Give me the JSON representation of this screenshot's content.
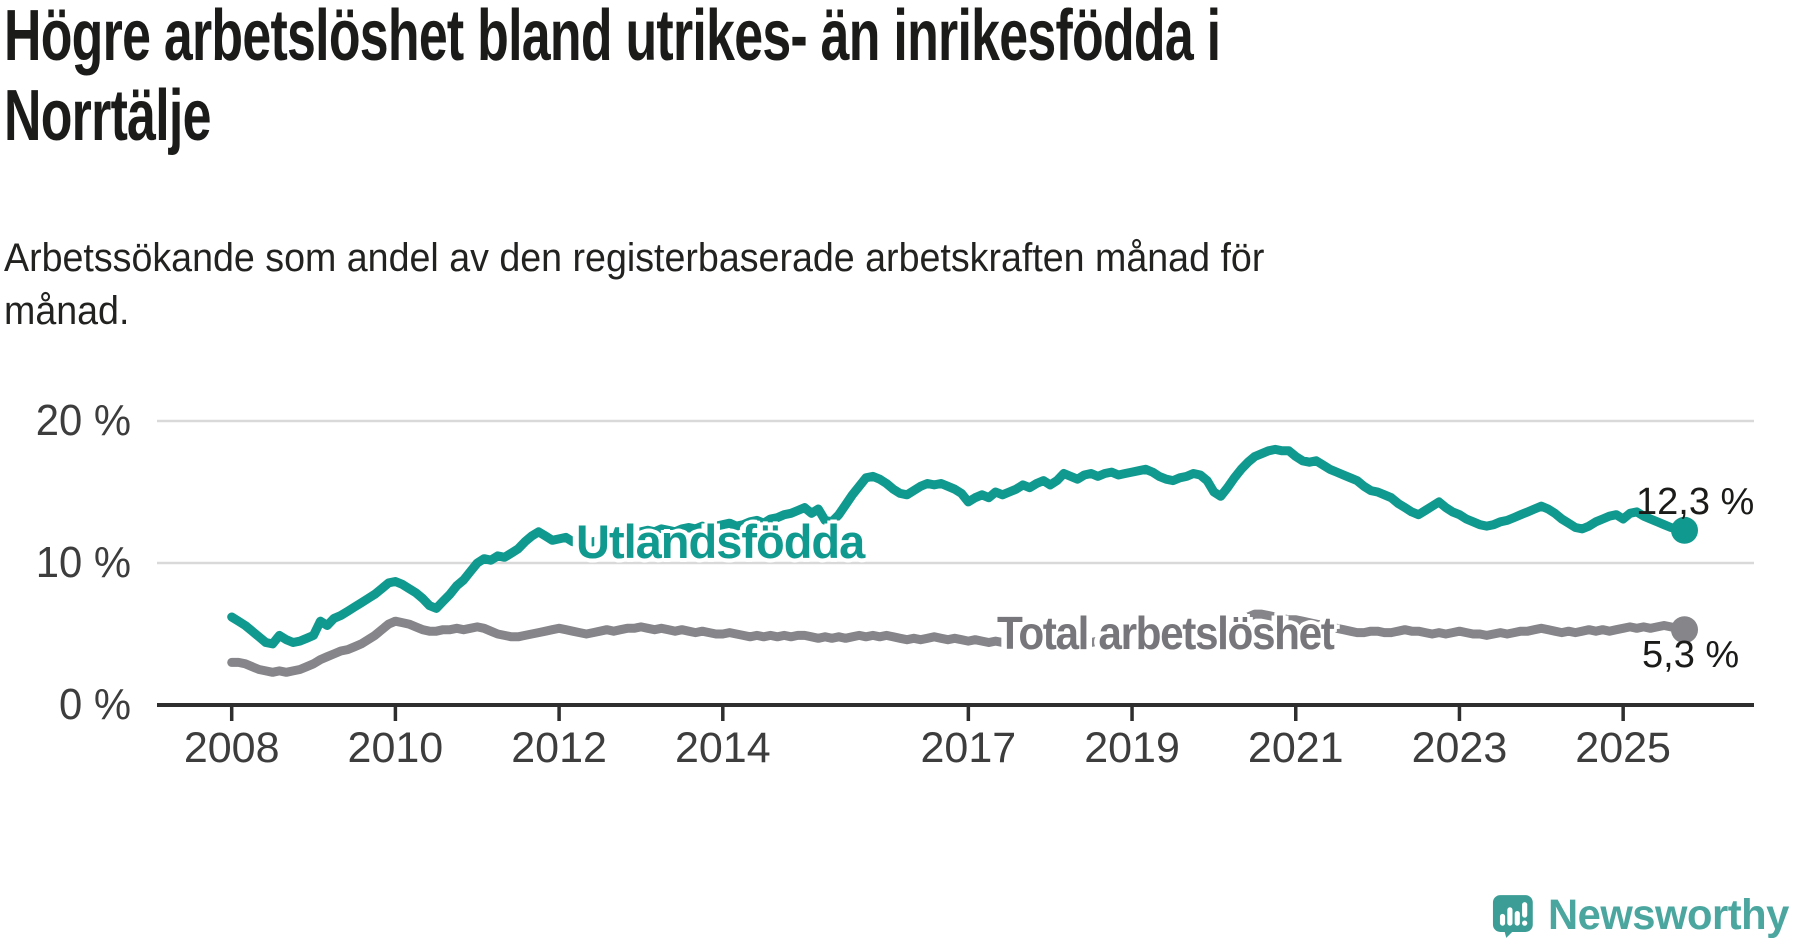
{
  "header": {
    "title_lines": [
      "Högre arbetslöshet bland utrikes- än inrikesfödda i",
      "Norrtälje"
    ],
    "subtitle_lines": [
      "Arbetssökande som andel av den registerbaserade arbetskraften månad för",
      "månad."
    ]
  },
  "chart_data": {
    "type": "line",
    "title": "Högre arbetslöshet bland utrikes- än inrikesfödda i Norrtälje",
    "subtitle": "Arbetssökande som andel av den registerbaserade arbetskraften månad för månad.",
    "x_start": "2008-01",
    "x_end": "2025-10",
    "x_frequency": "monthly",
    "ylim": [
      0,
      21.5
    ],
    "grid": true,
    "legend_position": "inline-labels",
    "y_axis": {
      "ticks": [
        {
          "label": "0 %",
          "value": 0
        },
        {
          "label": "10 %",
          "value": 10
        },
        {
          "label": "20 %",
          "value": 20
        }
      ]
    },
    "x_axis": {
      "ticks": [
        {
          "label": "2008",
          "year": 2008
        },
        {
          "label": "2010",
          "year": 2010
        },
        {
          "label": "2012",
          "year": 2012
        },
        {
          "label": "2014",
          "year": 2014
        },
        {
          "label": "2017",
          "year": 2017
        },
        {
          "label": "2019",
          "year": 2019
        },
        {
          "label": "2021",
          "year": 2021
        },
        {
          "label": "2023",
          "year": 2023
        },
        {
          "label": "2025",
          "year": 2025
        }
      ]
    },
    "series": [
      {
        "name": "Utlandsfödda",
        "color": "#10998E",
        "end_label": "12,3 %",
        "end_value": 12.3,
        "values": [
          6.2,
          5.9,
          5.6,
          5.2,
          4.8,
          4.4,
          4.3,
          4.9,
          4.6,
          4.4,
          4.5,
          4.7,
          4.9,
          5.9,
          5.6,
          6.1,
          6.3,
          6.6,
          6.9,
          7.2,
          7.5,
          7.8,
          8.2,
          8.6,
          8.7,
          8.5,
          8.2,
          7.9,
          7.5,
          7.0,
          6.8,
          7.3,
          7.8,
          8.4,
          8.8,
          9.4,
          10.0,
          10.3,
          10.2,
          10.5,
          10.4,
          10.7,
          11.0,
          11.5,
          11.9,
          12.2,
          11.9,
          11.6,
          11.7,
          11.8,
          11.5,
          11.6,
          11.4,
          11.5,
          11.6,
          11.8,
          11.7,
          11.9,
          12.0,
          12.1,
          12.2,
          12.3,
          12.2,
          12.4,
          12.3,
          12.2,
          12.4,
          12.5,
          12.4,
          12.6,
          12.5,
          12.6,
          12.7,
          12.8,
          12.6,
          12.7,
          12.9,
          13.0,
          12.8,
          13.1,
          13.2,
          13.4,
          13.5,
          13.7,
          13.9,
          13.5,
          13.8,
          13.0,
          12.9,
          13.4,
          14.1,
          14.8,
          15.4,
          16.0,
          16.1,
          15.9,
          15.6,
          15.2,
          14.9,
          14.8,
          15.1,
          15.4,
          15.6,
          15.5,
          15.6,
          15.4,
          15.2,
          14.9,
          14.3,
          14.6,
          14.8,
          14.6,
          15.0,
          14.8,
          15.0,
          15.2,
          15.5,
          15.3,
          15.6,
          15.8,
          15.5,
          15.8,
          16.3,
          16.1,
          15.9,
          16.2,
          16.3,
          16.1,
          16.3,
          16.4,
          16.2,
          16.3,
          16.4,
          16.5,
          16.6,
          16.4,
          16.1,
          15.9,
          15.8,
          16.0,
          16.1,
          16.3,
          16.2,
          15.8,
          15.0,
          14.7,
          15.3,
          16.0,
          16.6,
          17.1,
          17.5,
          17.7,
          17.9,
          18.0,
          17.9,
          17.9,
          17.5,
          17.2,
          17.1,
          17.2,
          16.9,
          16.6,
          16.4,
          16.2,
          16.0,
          15.8,
          15.4,
          15.1,
          15.0,
          14.8,
          14.6,
          14.2,
          13.9,
          13.6,
          13.4,
          13.7,
          14.0,
          14.3,
          13.9,
          13.6,
          13.4,
          13.1,
          12.9,
          12.7,
          12.6,
          12.7,
          12.9,
          13.0,
          13.2,
          13.4,
          13.6,
          13.8,
          14.0,
          13.8,
          13.5,
          13.1,
          12.8,
          12.5,
          12.4,
          12.6,
          12.9,
          13.1,
          13.3,
          13.4,
          13.1,
          13.5,
          13.6,
          13.3,
          13.1,
          12.9,
          12.7,
          12.5,
          12.4,
          12.3
        ]
      },
      {
        "name": "Total arbetslöshet",
        "color": "#85858A",
        "end_label": "5,3 %",
        "end_value": 5.3,
        "values": [
          3.0,
          3.0,
          2.9,
          2.7,
          2.5,
          2.4,
          2.3,
          2.4,
          2.3,
          2.4,
          2.5,
          2.7,
          2.9,
          3.2,
          3.4,
          3.6,
          3.8,
          3.9,
          4.1,
          4.3,
          4.6,
          4.9,
          5.3,
          5.7,
          5.9,
          5.8,
          5.7,
          5.5,
          5.3,
          5.2,
          5.2,
          5.3,
          5.3,
          5.4,
          5.3,
          5.4,
          5.5,
          5.4,
          5.2,
          5.0,
          4.9,
          4.8,
          4.8,
          4.9,
          5.0,
          5.1,
          5.2,
          5.3,
          5.4,
          5.3,
          5.2,
          5.1,
          5.0,
          5.1,
          5.2,
          5.3,
          5.2,
          5.3,
          5.4,
          5.4,
          5.5,
          5.4,
          5.3,
          5.4,
          5.3,
          5.2,
          5.3,
          5.2,
          5.1,
          5.2,
          5.1,
          5.0,
          5.0,
          5.1,
          5.0,
          4.9,
          4.8,
          4.9,
          4.8,
          4.9,
          4.8,
          4.9,
          4.8,
          4.9,
          4.9,
          4.8,
          4.7,
          4.8,
          4.7,
          4.8,
          4.7,
          4.8,
          4.9,
          4.8,
          4.9,
          4.8,
          4.9,
          4.8,
          4.7,
          4.6,
          4.7,
          4.6,
          4.7,
          4.8,
          4.7,
          4.6,
          4.7,
          4.6,
          4.5,
          4.6,
          4.5,
          4.4,
          4.5,
          4.4,
          4.5,
          4.4,
          4.5,
          4.4,
          4.5,
          4.5,
          4.4,
          4.5,
          4.4,
          4.3,
          4.4,
          4.3,
          4.4,
          4.5,
          4.4,
          4.5,
          4.4,
          4.5,
          4.5,
          4.6,
          4.5,
          4.6,
          4.5,
          4.6,
          4.7,
          4.6,
          4.7,
          4.8,
          4.7,
          4.8,
          5.0,
          4.9,
          5.2,
          5.7,
          6.0,
          6.2,
          6.4,
          6.4,
          6.3,
          6.2,
          6.1,
          6.0,
          6.0,
          5.9,
          5.8,
          5.7,
          5.6,
          5.5,
          5.4,
          5.3,
          5.2,
          5.1,
          5.1,
          5.2,
          5.2,
          5.1,
          5.1,
          5.2,
          5.3,
          5.2,
          5.2,
          5.1,
          5.0,
          5.1,
          5.0,
          5.1,
          5.2,
          5.1,
          5.0,
          5.0,
          4.9,
          5.0,
          5.1,
          5.0,
          5.1,
          5.2,
          5.2,
          5.3,
          5.4,
          5.3,
          5.2,
          5.1,
          5.2,
          5.1,
          5.2,
          5.3,
          5.2,
          5.3,
          5.2,
          5.3,
          5.4,
          5.5,
          5.4,
          5.5,
          5.4,
          5.5,
          5.6,
          5.5,
          5.4,
          5.3
        ]
      }
    ]
  },
  "branding": {
    "logo_text": "Newsworthy",
    "logo_icon": "newsworthy-speech-bubble-bar-chart-icon",
    "logo_color": "#3B9D95",
    "text_color": "#4BA6A0"
  },
  "style": {
    "grid_color": "#D9D9D9",
    "axis_color": "#2E2E2E",
    "tick_label_color": "#3d3d3d"
  }
}
